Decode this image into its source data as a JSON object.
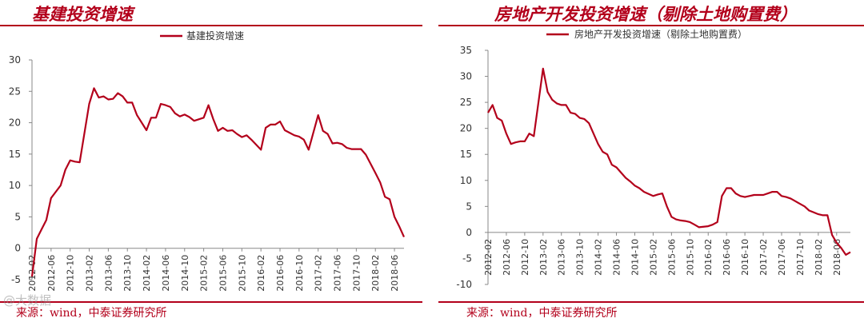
{
  "charts": [
    {
      "title": "基建投资增速",
      "source": "来源：wind，中泰证券研究所",
      "color": "#b3001b",
      "chart_data": {
        "type": "line",
        "title": "基建投资增速",
        "series": [
          {
            "name": "基建投资增速",
            "points": [
              [
                "2012-02",
                -4.5
              ],
              [
                "2012-03",
                1.5
              ],
              [
                "2012-04",
                3.0
              ],
              [
                "2012-05",
                4.5
              ],
              [
                "2012-06",
                8.0
              ],
              [
                "2012-07",
                9.0
              ],
              [
                "2012-08",
                10.0
              ],
              [
                "2012-09",
                12.5
              ],
              [
                "2012-10",
                14.0
              ],
              [
                "2012-11",
                13.8
              ],
              [
                "2012-12",
                13.7
              ],
              [
                "2013-02",
                23.0
              ],
              [
                "2013-03",
                25.5
              ],
              [
                "2013-04",
                24.0
              ],
              [
                "2013-05",
                24.2
              ],
              [
                "2013-06",
                23.7
              ],
              [
                "2013-07",
                23.8
              ],
              [
                "2013-08",
                24.7
              ],
              [
                "2013-09",
                24.2
              ],
              [
                "2013-10",
                23.2
              ],
              [
                "2013-11",
                23.2
              ],
              [
                "2013-12",
                21.2
              ],
              [
                "2014-02",
                18.8
              ],
              [
                "2014-03",
                20.8
              ],
              [
                "2014-04",
                20.8
              ],
              [
                "2014-05",
                23.0
              ],
              [
                "2014-06",
                22.8
              ],
              [
                "2014-07",
                22.5
              ],
              [
                "2014-08",
                21.5
              ],
              [
                "2014-09",
                21.0
              ],
              [
                "2014-10",
                21.3
              ],
              [
                "2014-11",
                20.9
              ],
              [
                "2014-12",
                20.3
              ],
              [
                "2015-02",
                20.8
              ],
              [
                "2015-03",
                22.8
              ],
              [
                "2015-04",
                20.6
              ],
              [
                "2015-05",
                18.7
              ],
              [
                "2015-06",
                19.2
              ],
              [
                "2015-07",
                18.7
              ],
              [
                "2015-08",
                18.8
              ],
              [
                "2015-09",
                18.2
              ],
              [
                "2015-10",
                17.7
              ],
              [
                "2015-11",
                18.0
              ],
              [
                "2015-12",
                17.3
              ],
              [
                "2016-02",
                15.7
              ],
              [
                "2016-03",
                19.2
              ],
              [
                "2016-04",
                19.7
              ],
              [
                "2016-05",
                19.7
              ],
              [
                "2016-06",
                20.2
              ],
              [
                "2016-07",
                18.8
              ],
              [
                "2016-08",
                18.4
              ],
              [
                "2016-09",
                18.0
              ],
              [
                "2016-10",
                17.8
              ],
              [
                "2016-11",
                17.3
              ],
              [
                "2016-12",
                15.7
              ],
              [
                "2017-02",
                21.2
              ],
              [
                "2017-03",
                18.7
              ],
              [
                "2017-04",
                18.2
              ],
              [
                "2017-05",
                16.7
              ],
              [
                "2017-06",
                16.8
              ],
              [
                "2017-07",
                16.6
              ],
              [
                "2017-08",
                16.0
              ],
              [
                "2017-09",
                15.8
              ],
              [
                "2017-10",
                15.8
              ],
              [
                "2017-11",
                15.8
              ],
              [
                "2017-12",
                14.9
              ],
              [
                "2018-02",
                12.0
              ],
              [
                "2018-03",
                10.5
              ],
              [
                "2018-04",
                8.2
              ],
              [
                "2018-05",
                7.8
              ],
              [
                "2018-06",
                5.0
              ],
              [
                "2018-07",
                3.5
              ],
              [
                "2018-08",
                1.8
              ]
            ]
          }
        ],
        "ylim": [
          -5,
          30
        ],
        "yticks": [
          -5,
          0,
          5,
          10,
          15,
          20,
          25,
          30
        ],
        "xticks": [
          "2012-02",
          "2012-06",
          "2012-10",
          "2013-02",
          "2013-06",
          "2013-10",
          "2014-02",
          "2014-06",
          "2014-10",
          "2015-02",
          "2015-06",
          "2015-10",
          "2016-02",
          "2016-06",
          "2016-10",
          "2017-02",
          "2017-06",
          "2017-10",
          "2018-02",
          "2018-06"
        ],
        "xrange": [
          "2012-02",
          "2018-08"
        ],
        "legend": "top-center",
        "grid": false
      }
    },
    {
      "title": "房地产开发投资增速（剔除土地购置费）",
      "source": "来源：wind，中泰证券研究所",
      "color": "#b3001b",
      "chart_data": {
        "type": "line",
        "title": "房地产开发投资增速（剔除土地购置费）",
        "series": [
          {
            "name": "房地产开发投资增速（剔除土地购置费）",
            "points": [
              [
                "2012-02",
                23.0
              ],
              [
                "2012-03",
                24.5
              ],
              [
                "2012-04",
                22.0
              ],
              [
                "2012-05",
                21.5
              ],
              [
                "2012-06",
                19.0
              ],
              [
                "2012-07",
                17.0
              ],
              [
                "2012-08",
                17.3
              ],
              [
                "2012-09",
                17.5
              ],
              [
                "2012-10",
                17.5
              ],
              [
                "2012-11",
                19.0
              ],
              [
                "2012-12",
                18.5
              ],
              [
                "2013-02",
                31.5
              ],
              [
                "2013-03",
                27.0
              ],
              [
                "2013-04",
                25.5
              ],
              [
                "2013-05",
                24.8
              ],
              [
                "2013-06",
                24.5
              ],
              [
                "2013-07",
                24.5
              ],
              [
                "2013-08",
                23.0
              ],
              [
                "2013-09",
                22.8
              ],
              [
                "2013-10",
                22.0
              ],
              [
                "2013-11",
                21.8
              ],
              [
                "2013-12",
                21.0
              ],
              [
                "2014-02",
                17.0
              ],
              [
                "2014-03",
                15.5
              ],
              [
                "2014-04",
                15.0
              ],
              [
                "2014-05",
                13.0
              ],
              [
                "2014-06",
                12.5
              ],
              [
                "2014-07",
                11.5
              ],
              [
                "2014-08",
                10.5
              ],
              [
                "2014-09",
                9.8
              ],
              [
                "2014-10",
                9.0
              ],
              [
                "2014-11",
                8.5
              ],
              [
                "2014-12",
                7.8
              ],
              [
                "2015-02",
                7.0
              ],
              [
                "2015-03",
                7.3
              ],
              [
                "2015-04",
                7.5
              ],
              [
                "2015-05",
                5.0
              ],
              [
                "2015-06",
                3.0
              ],
              [
                "2015-07",
                2.5
              ],
              [
                "2015-08",
                2.3
              ],
              [
                "2015-09",
                2.2
              ],
              [
                "2015-10",
                2.0
              ],
              [
                "2015-11",
                1.5
              ],
              [
                "2015-12",
                1.0
              ],
              [
                "2016-02",
                1.2
              ],
              [
                "2016-03",
                1.5
              ],
              [
                "2016-04",
                2.0
              ],
              [
                "2016-05",
                7.0
              ],
              [
                "2016-06",
                8.5
              ],
              [
                "2016-07",
                8.5
              ],
              [
                "2016-08",
                7.5
              ],
              [
                "2016-09",
                7.0
              ],
              [
                "2016-10",
                6.8
              ],
              [
                "2016-11",
                7.0
              ],
              [
                "2016-12",
                7.2
              ],
              [
                "2017-02",
                7.2
              ],
              [
                "2017-03",
                7.5
              ],
              [
                "2017-04",
                7.8
              ],
              [
                "2017-05",
                7.8
              ],
              [
                "2017-06",
                7.0
              ],
              [
                "2017-07",
                6.8
              ],
              [
                "2017-08",
                6.5
              ],
              [
                "2017-09",
                6.0
              ],
              [
                "2017-10",
                5.5
              ],
              [
                "2017-11",
                5.0
              ],
              [
                "2017-12",
                4.2
              ],
              [
                "2018-02",
                3.5
              ],
              [
                "2018-03",
                3.3
              ],
              [
                "2018-04",
                3.3
              ],
              [
                "2018-05",
                -0.5
              ],
              [
                "2018-06",
                -2.0
              ],
              [
                "2018-07",
                -3.0
              ],
              [
                "2018-08",
                -4.3
              ],
              [
                "2018-09",
                -3.8
              ]
            ]
          }
        ],
        "ylim": [
          -10,
          35
        ],
        "yticks": [
          -10,
          -5,
          0,
          5,
          10,
          15,
          20,
          25,
          30,
          35
        ],
        "xticks": [
          "2012-02",
          "2012-06",
          "2012-10",
          "2013-02",
          "2013-06",
          "2013-10",
          "2014-02",
          "2014-06",
          "2014-10",
          "2015-02",
          "2015-06",
          "2015-10",
          "2016-02",
          "2016-06",
          "2016-10",
          "2017-02",
          "2017-06",
          "2017-10",
          "2018-02",
          "2018-06"
        ],
        "xrange": [
          "2012-02",
          "2018-09"
        ],
        "legend": "top-center",
        "grid": false
      }
    }
  ],
  "watermark": "@大数据"
}
